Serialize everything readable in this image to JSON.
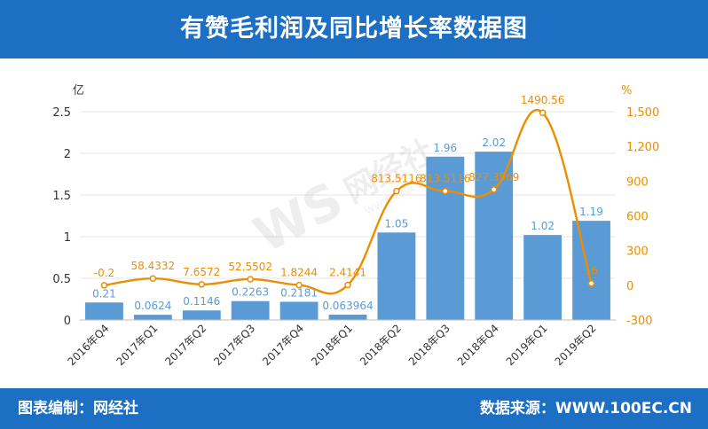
{
  "header": {
    "title": "有赞毛利润及同比增长率数据图"
  },
  "footer": {
    "left": "图表编制：网经社",
    "right": "数据来源：WWW.100EC.CN"
  },
  "watermark": {
    "text": "网经社",
    "url": "WWW.100EC.CN"
  },
  "colors": {
    "header": "#1c6fc2",
    "bar": "#5b9bd5",
    "line": "#ed8d00",
    "axis_text": "#333333",
    "grid": "#e6e6e6"
  },
  "chart_data": {
    "type": "bar",
    "title": "有赞毛利润及同比增长率数据图",
    "categories": [
      "2016年Q4",
      "2017年Q1",
      "2017年Q2",
      "2017年Q3",
      "2017年Q4",
      "2018年Q1",
      "2018年Q2",
      "2018年Q3",
      "2018年Q4",
      "2019年Q1",
      "2019年Q2"
    ],
    "y_left": {
      "unit": "亿",
      "ticks": [
        "0",
        "0.5",
        "1",
        "1.5",
        "2",
        "2.5"
      ],
      "ylim": [
        0,
        2.5
      ]
    },
    "y_right": {
      "unit": "%",
      "ticks": [
        "-300",
        "0",
        "300",
        "600",
        "900",
        "1,200",
        "1,500"
      ],
      "ylim": [
        -300,
        1500
      ]
    },
    "series": [
      {
        "type": "bar",
        "axis": "left",
        "values": [
          0.21,
          0.0624,
          0.1146,
          0.2263,
          0.2181,
          0.063964,
          1.05,
          1.96,
          2.02,
          1.02,
          1.19
        ],
        "labels": [
          "0.21",
          "0.0624",
          "0.1146",
          "0.2263",
          "0.2181",
          "0.063964",
          "1.05",
          "1.96",
          "2.02",
          "1.02",
          "1.19"
        ]
      },
      {
        "type": "line",
        "axis": "right",
        "values": [
          -0.2,
          58.4332,
          7.6572,
          52.5502,
          1.8244,
          2.4141,
          813.5116,
          813.5116,
          827.3569,
          1490.56,
          16
        ],
        "labels": [
          "-0.2",
          "58.4332",
          "7.6572",
          "52.5502",
          "1.8244",
          "2.4141",
          "813.5116",
          "813.5116",
          "827.3569",
          "1490.56",
          "16"
        ]
      }
    ],
    "grid": true,
    "legend": "none"
  }
}
